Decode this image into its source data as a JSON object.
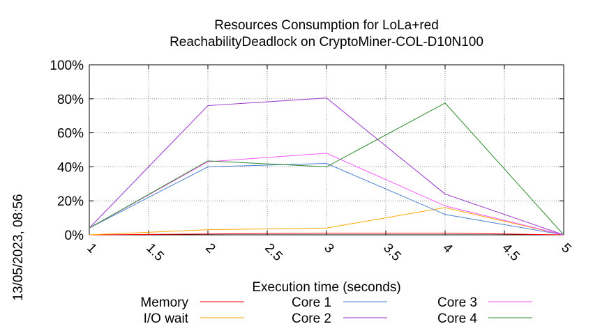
{
  "side_label": "13/05/2023, 08:56",
  "chart_data": {
    "type": "line",
    "title_lines": [
      "Resources Consumption for LoLa+red",
      "ReachabilityDeadlock on CryptoMiner-COL-D10N100"
    ],
    "xlabel": "Execution time (seconds)",
    "ylabel": "",
    "xlim": [
      1,
      5
    ],
    "ylim": [
      0,
      100
    ],
    "x_ticks": [
      "1",
      "1.5",
      "2",
      "2.5",
      "3",
      "3.5",
      "4",
      "4.5",
      "5"
    ],
    "y_ticks": [
      "0%",
      "20%",
      "40%",
      "60%",
      "80%",
      "100%"
    ],
    "grid": true,
    "legend_placement": "bottom",
    "x": [
      1,
      2,
      3,
      4,
      5
    ],
    "series": [
      {
        "name": "Memory",
        "color": "#ff0000",
        "values": [
          0,
          0.5,
          1,
          1,
          0
        ]
      },
      {
        "name": "I/O wait",
        "color": "#ffa500",
        "values": [
          0,
          3,
          4,
          16,
          0
        ]
      },
      {
        "name": "Core 1",
        "color": "#4b7fd1",
        "values": [
          4,
          40,
          42,
          12,
          0
        ]
      },
      {
        "name": "Core 2",
        "color": "#9932cc",
        "values": [
          4,
          76,
          80.5,
          24,
          0
        ]
      },
      {
        "name": "Core 3",
        "color": "#ff55ff",
        "values": [
          4,
          43,
          48,
          17,
          0
        ]
      },
      {
        "name": "Core 4",
        "color": "#2e8b2e",
        "values": [
          4,
          43.5,
          40,
          77.5,
          0
        ]
      }
    ]
  }
}
